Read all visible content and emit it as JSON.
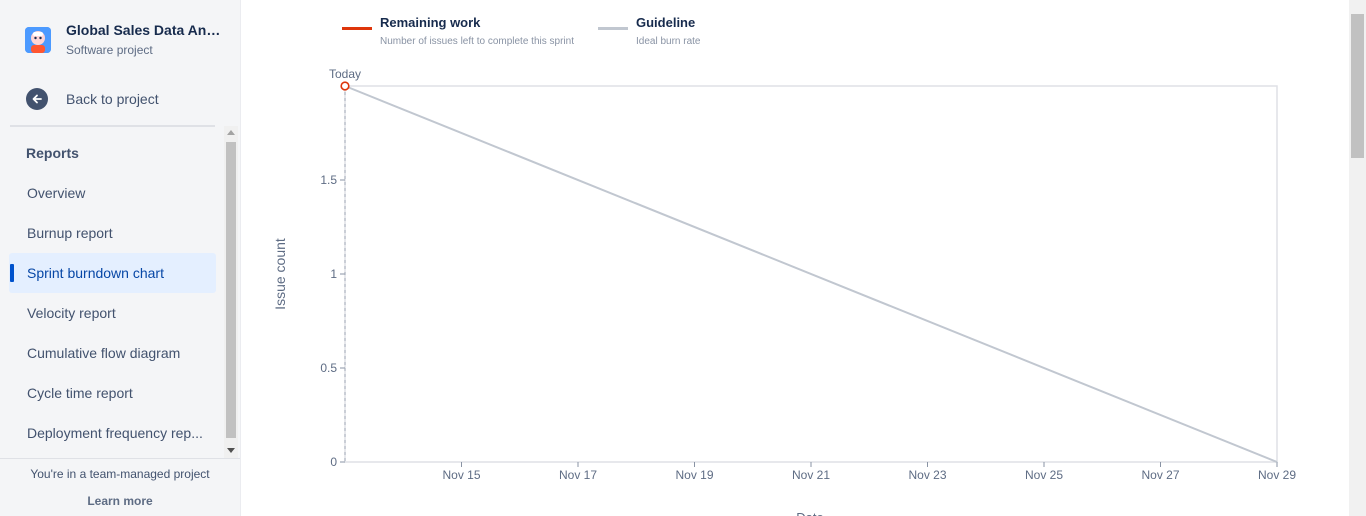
{
  "sidebar": {
    "project_title": "Global Sales Data Anal...",
    "project_subtitle": "Software project",
    "back_label": "Back to project",
    "reports_heading": "Reports",
    "items": [
      {
        "label": "Overview",
        "selected": false
      },
      {
        "label": "Burnup report",
        "selected": false
      },
      {
        "label": "Sprint burndown chart",
        "selected": true
      },
      {
        "label": "Velocity report",
        "selected": false
      },
      {
        "label": "Cumulative flow diagram",
        "selected": false
      },
      {
        "label": "Cycle time report",
        "selected": false
      },
      {
        "label": "Deployment frequency rep...",
        "selected": false
      }
    ],
    "footer_note": "You're in a team-managed project",
    "learn_more": "Learn more"
  },
  "legend": {
    "remaining": {
      "title": "Remaining work",
      "desc": "Number of issues left to complete this sprint",
      "color": "#de350b"
    },
    "guideline": {
      "title": "Guideline",
      "desc": "Ideal burn rate",
      "color": "#c1c7d0"
    }
  },
  "chart_data": {
    "type": "line",
    "ylabel": "Issue count",
    "xlabel": "Date",
    "today_label": "Today",
    "ylim": [
      0,
      2
    ],
    "yticks": [
      "0",
      "0.5",
      "1",
      "1.5"
    ],
    "ytick_values": [
      0,
      0.5,
      1,
      1.5
    ],
    "xlim": [
      "Nov 13",
      "Nov 29"
    ],
    "xticks": [
      "Nov 15",
      "Nov 17",
      "Nov 19",
      "Nov 21",
      "Nov 23",
      "Nov 25",
      "Nov 27",
      "Nov 29"
    ],
    "xtick_days": [
      15,
      17,
      19,
      21,
      23,
      25,
      27,
      29
    ],
    "series": [
      {
        "name": "Guideline",
        "x": [
          "Nov 13",
          "Nov 29"
        ],
        "y": [
          2,
          0
        ]
      },
      {
        "name": "Remaining work",
        "x": [
          "Nov 13"
        ],
        "y": [
          2
        ]
      }
    ]
  }
}
